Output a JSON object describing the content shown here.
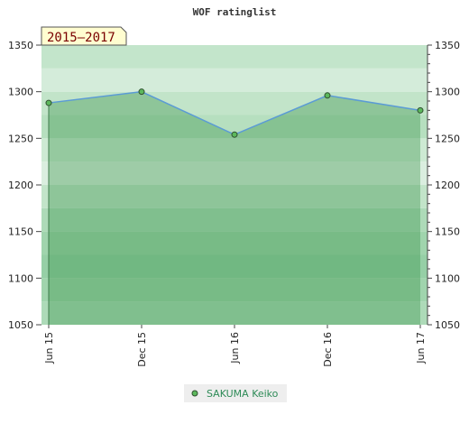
{
  "chart_data": {
    "type": "area",
    "title": "WOF ratinglist",
    "period_label": "2015–2017",
    "x": [
      "Jun 15",
      "Dec 15",
      "Jun 16",
      "Dec 16",
      "Jun 17"
    ],
    "series": [
      {
        "name": "SAKUMA Keiko",
        "values": [
          1288,
          1300,
          1254,
          1296,
          1280
        ]
      }
    ],
    "ylim": [
      1050,
      1350
    ],
    "y_ticks": [
      1050,
      1100,
      1150,
      1200,
      1250,
      1300,
      1350
    ],
    "y_axis": "both sides",
    "legend": "bottom-center",
    "grid": false
  },
  "colors": {
    "line": "#5b9bd5",
    "area": "#2e8b3e",
    "marker_fill": "#5cb85c",
    "marker_stroke": "#2f4f2f",
    "period_bg": "#fffdd0",
    "legend_text": "#2e8b57"
  }
}
